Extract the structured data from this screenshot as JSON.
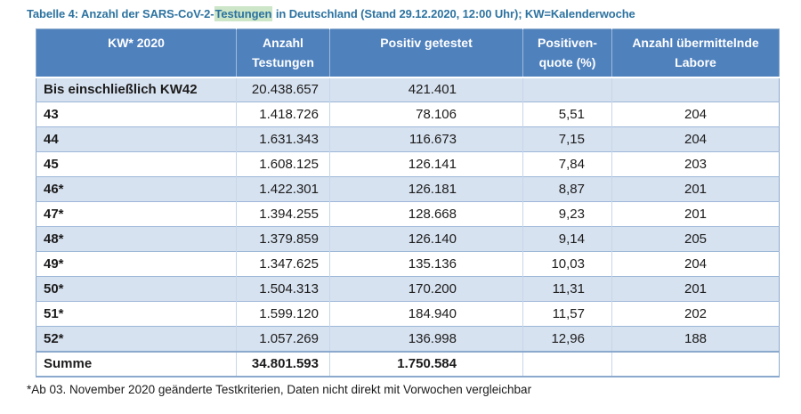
{
  "caption": {
    "label_before": "Tabelle 4: Anzahl der SARS-CoV-2-",
    "highlighted_text": "Testungen",
    "label_after": " in Deutschland (Stand 29.12.2020, 12:00 Uhr); KW=Kalenderwoche"
  },
  "table": {
    "headers": [
      "KW* 2020",
      "Anzahl\nTestungen",
      "Positiv getestet",
      "Positiven-\nquote (%)",
      "Anzahl übermittelnde\nLabore"
    ],
    "rows": [
      [
        "Bis einschließlich KW42",
        "20.438.657",
        "421.401",
        "",
        ""
      ],
      [
        "43",
        "1.418.726",
        "78.106",
        "5,51",
        "204"
      ],
      [
        "44",
        "1.631.343",
        "116.673",
        "7,15",
        "204"
      ],
      [
        "45",
        "1.608.125",
        "126.141",
        "7,84",
        "203"
      ],
      [
        "46*",
        "1.422.301",
        "126.181",
        "8,87",
        "201"
      ],
      [
        "47*",
        "1.394.255",
        "128.668",
        "9,23",
        "201"
      ],
      [
        "48*",
        "1.379.859",
        "126.140",
        "9,14",
        "205"
      ],
      [
        "49*",
        "1.347.625",
        "135.136",
        "10,03",
        "204"
      ],
      [
        "50*",
        "1.504.313",
        "170.200",
        "11,31",
        "201"
      ],
      [
        "51*",
        "1.599.120",
        "184.940",
        "11,57",
        "202"
      ],
      [
        "52*",
        "1.057.269",
        "136.998",
        "12,96",
        "188"
      ],
      [
        "Summe",
        "34.801.593",
        "1.750.584",
        "",
        ""
      ]
    ]
  },
  "footnote": "*Ab 03. November 2020 geänderte Testkriterien, Daten nicht direkt mit Vorwochen vergleichbar",
  "colors": {
    "header_bg": "#4f81bd",
    "row_stripe": "#d7e2f0",
    "caption_color": "#2d73a0",
    "highlight_bg": "#cde6c7",
    "table_border": "#8aa9cc"
  }
}
